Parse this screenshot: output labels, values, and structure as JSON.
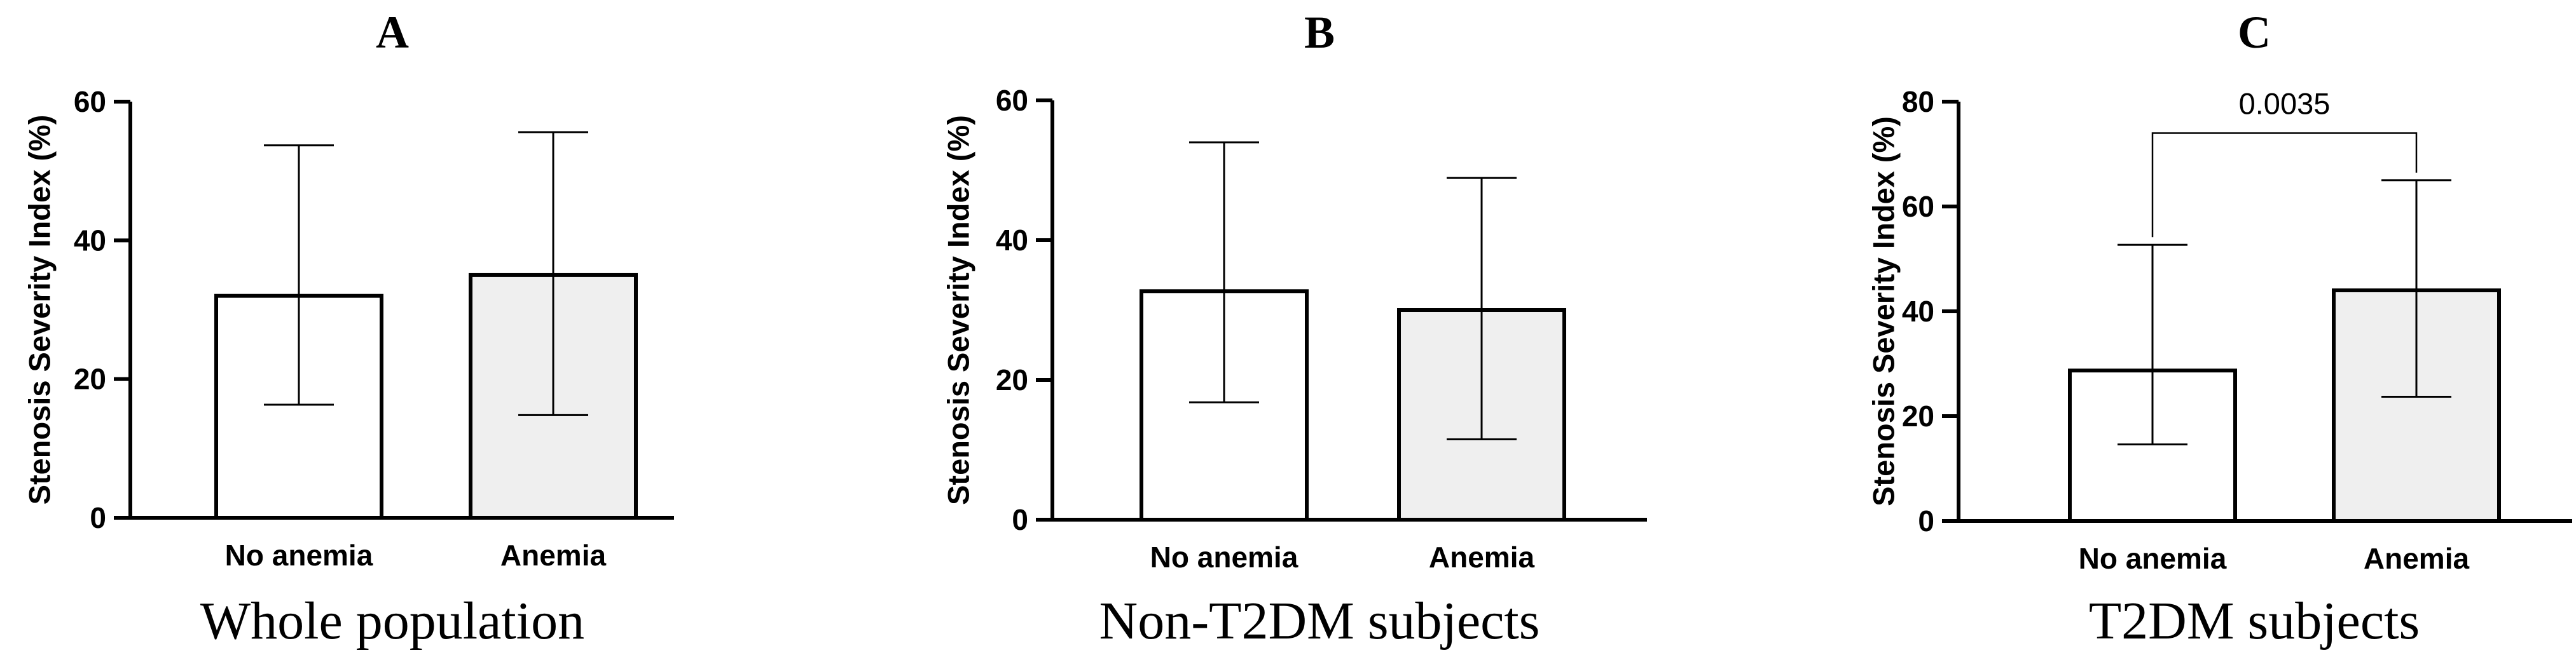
{
  "chart_data": [
    {
      "type": "bar",
      "panel": "A",
      "caption": "Whole population",
      "ylabel": "Stenosis Severity Index (%)",
      "ylim": [
        0,
        60
      ],
      "yticks": [
        0,
        20,
        40,
        60
      ],
      "categories": [
        "No anemia",
        "Anemia"
      ],
      "values": [
        32,
        35
      ],
      "error_low": [
        16.3,
        14.8
      ],
      "error_high": [
        53.7,
        55.6
      ],
      "fills": [
        "#ffffff",
        "#efefef"
      ],
      "annotation": null
    },
    {
      "type": "bar",
      "panel": "B",
      "caption": "Non-T2DM subjects",
      "ylabel": "Stenosis Severity Index (%)",
      "ylim": [
        0,
        60
      ],
      "yticks": [
        0,
        20,
        40,
        60
      ],
      "categories": [
        "No anemia",
        "Anemia"
      ],
      "values": [
        32.7,
        30
      ],
      "error_low": [
        16.8,
        11.5
      ],
      "error_high": [
        54,
        48.9
      ],
      "fills": [
        "#ffffff",
        "#efefef"
      ],
      "annotation": null
    },
    {
      "type": "bar",
      "panel": "C",
      "caption": "T2DM subjects",
      "ylabel": "Stenosis Severity Index (%)",
      "ylim": [
        0,
        80
      ],
      "yticks": [
        0,
        20,
        40,
        60,
        80
      ],
      "categories": [
        "No anemia",
        "Anemia"
      ],
      "values": [
        28.7,
        44
      ],
      "error_low": [
        14.6,
        23.7
      ],
      "error_high": [
        52.7,
        65
      ],
      "fills": [
        "#ffffff",
        "#efefef"
      ],
      "annotation": {
        "label": "0.0035",
        "y": 74
      }
    }
  ]
}
